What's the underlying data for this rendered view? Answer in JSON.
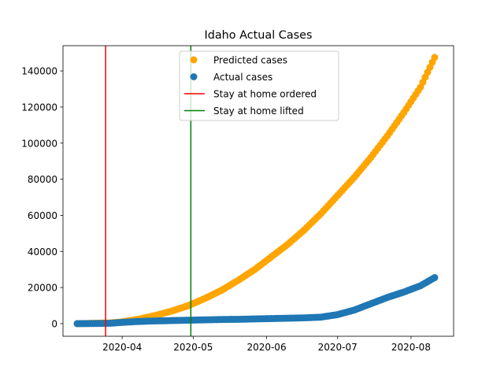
{
  "chart_data": {
    "type": "scatter",
    "title": "Idaho Actual Cases",
    "xlabel": "",
    "ylabel": "",
    "x_range": [
      "2020-03-07",
      "2020-08-19"
    ],
    "ylim": [
      -7000,
      154000
    ],
    "x_ticks": [
      "2020-04",
      "2020-05",
      "2020-06",
      "2020-07",
      "2020-08"
    ],
    "x_tick_dates": [
      "2020-04-01",
      "2020-05-01",
      "2020-06-01",
      "2020-07-01",
      "2020-08-01"
    ],
    "y_ticks": [
      "0",
      "20000",
      "40000",
      "60000",
      "80000",
      "100000",
      "120000",
      "140000"
    ],
    "y_tick_values": [
      0,
      20000,
      40000,
      60000,
      80000,
      100000,
      120000,
      140000
    ],
    "grid": false,
    "legend_position": "top-center",
    "series": [
      {
        "name": "Predicted cases",
        "kind": "points",
        "color": "#ffa500",
        "points": [
          [
            "2020-03-13",
            0
          ],
          [
            "2020-03-20",
            200
          ],
          [
            "2020-03-27",
            400
          ],
          [
            "2020-04-01",
            1000
          ],
          [
            "2020-04-08",
            2500
          ],
          [
            "2020-04-15",
            4500
          ],
          [
            "2020-04-22",
            7000
          ],
          [
            "2020-04-29",
            10000
          ],
          [
            "2020-05-06",
            14000
          ],
          [
            "2020-05-13",
            18500
          ],
          [
            "2020-05-20",
            24000
          ],
          [
            "2020-05-27",
            30000
          ],
          [
            "2020-06-03",
            37000
          ],
          [
            "2020-06-10",
            44000
          ],
          [
            "2020-06-17",
            52000
          ],
          [
            "2020-06-24",
            61000
          ],
          [
            "2020-07-01",
            71000
          ],
          [
            "2020-07-08",
            81000
          ],
          [
            "2020-07-15",
            92000
          ],
          [
            "2020-07-22",
            104000
          ],
          [
            "2020-07-29",
            117000
          ],
          [
            "2020-08-05",
            131000
          ],
          [
            "2020-08-11",
            147500
          ]
        ]
      },
      {
        "name": "Actual cases",
        "kind": "points",
        "color": "#1f77b4",
        "points": [
          [
            "2020-03-13",
            0
          ],
          [
            "2020-03-20",
            50
          ],
          [
            "2020-03-27",
            200
          ],
          [
            "2020-04-01",
            700
          ],
          [
            "2020-04-08",
            1200
          ],
          [
            "2020-04-15",
            1500
          ],
          [
            "2020-04-22",
            1700
          ],
          [
            "2020-04-29",
            1900
          ],
          [
            "2020-05-06",
            2100
          ],
          [
            "2020-05-13",
            2300
          ],
          [
            "2020-05-20",
            2400
          ],
          [
            "2020-05-27",
            2600
          ],
          [
            "2020-06-03",
            2800
          ],
          [
            "2020-06-10",
            3000
          ],
          [
            "2020-06-17",
            3200
          ],
          [
            "2020-06-24",
            3600
          ],
          [
            "2020-07-01",
            5000
          ],
          [
            "2020-07-08",
            7500
          ],
          [
            "2020-07-15",
            11000
          ],
          [
            "2020-07-22",
            14500
          ],
          [
            "2020-07-29",
            17500
          ],
          [
            "2020-08-05",
            21000
          ],
          [
            "2020-08-11",
            25500
          ]
        ]
      },
      {
        "name": "Stay at home ordered",
        "kind": "vline",
        "color": "#ff0000",
        "x": "2020-03-25"
      },
      {
        "name": "Stay at home lifted",
        "kind": "vline",
        "color": "#008000",
        "x": "2020-04-30"
      }
    ]
  }
}
